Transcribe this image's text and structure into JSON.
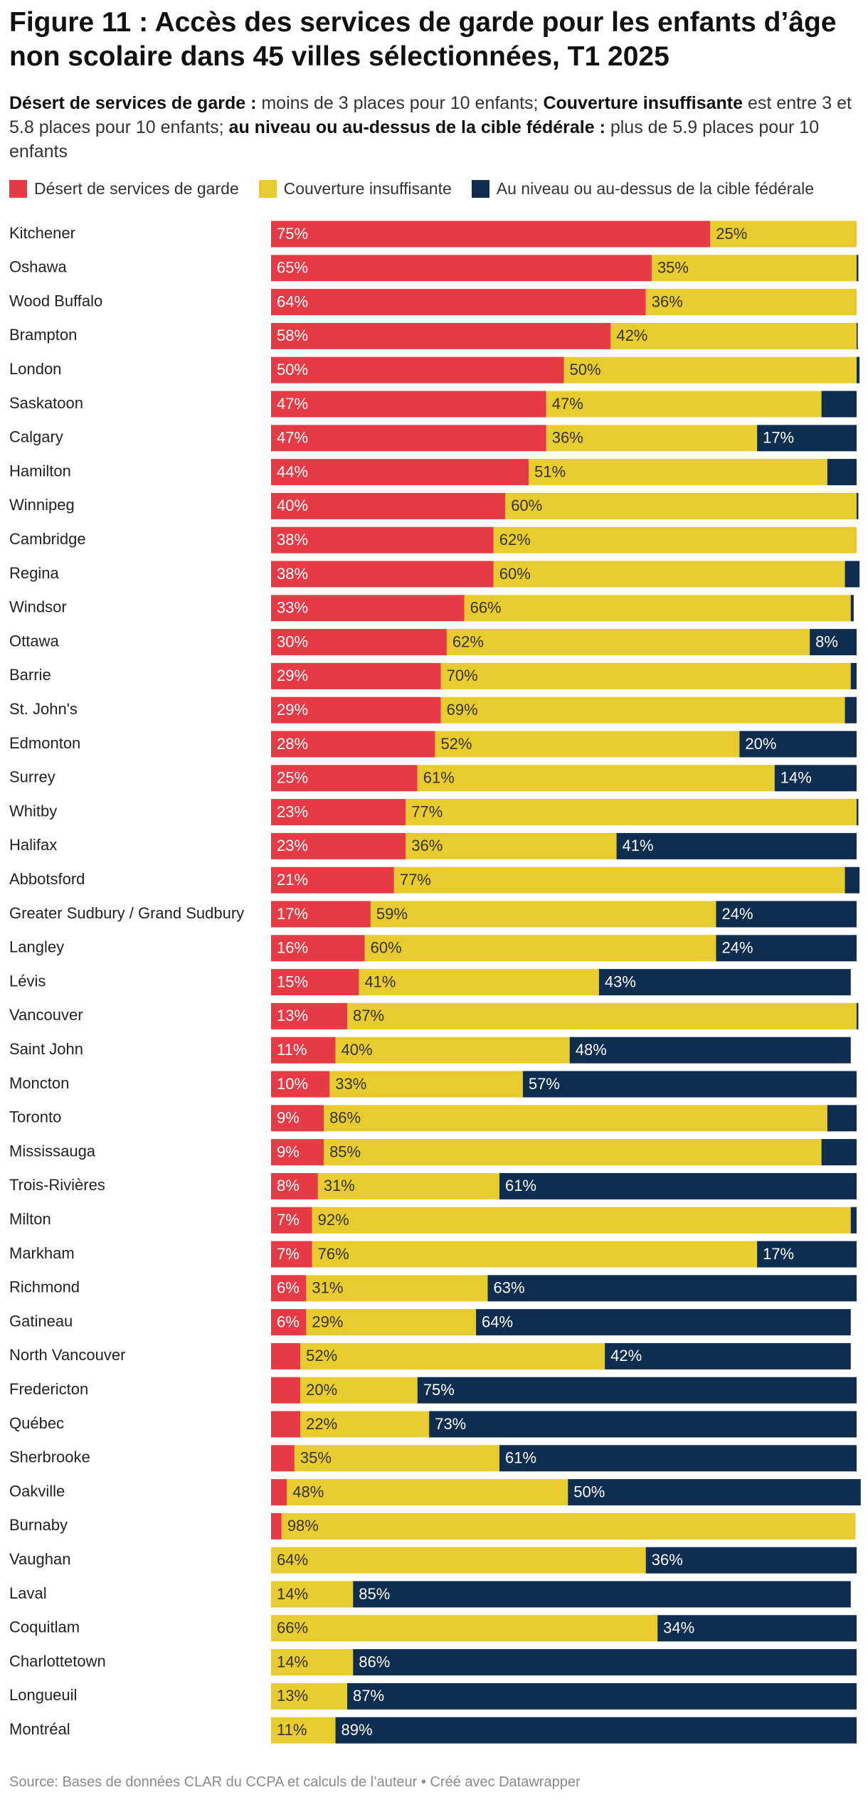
{
  "chart_data": {
    "type": "bar",
    "orientation": "horizontal",
    "stacked": true,
    "title": "Figure 11 : Accès des services de garde pour les enfants d’âge non scolaire dans 45 villes sélectionnées, T1 2025",
    "subtitle": [
      {
        "text": "Désert de services de garde :",
        "bold": true
      },
      {
        "text": " moins de 3 places pour 10 enfants; ",
        "bold": false
      },
      {
        "text": "Couverture insuffisante",
        "bold": true
      },
      {
        "text": " est entre 3 et 5.8 places pour 10 enfants; ",
        "bold": false
      },
      {
        "text": "au niveau ou au-dessus de la cible fédérale :",
        "bold": true
      },
      {
        "text": " plus de 5.9 places pour 10 enfants",
        "bold": false
      }
    ],
    "source": "Source: Bases de données CLAR du CCPA et calculs de l’auteur • Créé avec Datawrapper",
    "xlim": [
      0,
      100
    ],
    "categories": [
      "Kitchener",
      "Oshawa",
      "Wood Buffalo",
      "Brampton",
      "London",
      "Saskatoon",
      "Calgary",
      "Hamilton",
      "Winnipeg",
      "Cambridge",
      "Regina",
      "Windsor",
      "Ottawa",
      "Barrie",
      "St. John's",
      "Edmonton",
      "Surrey",
      "Whitby",
      "Halifax",
      "Abbotsford",
      "Greater Sudbury / Grand Sudbury",
      "Langley",
      "Lévis",
      "Vancouver",
      "Saint John",
      "Moncton",
      "Toronto",
      "Mississauga",
      "Trois-Rivières",
      "Milton",
      "Markham",
      "Richmond",
      "Gatineau",
      "North Vancouver",
      "Fredericton",
      "Québec",
      "Sherbrooke",
      "Oakville",
      "Burnaby",
      "Vaughan",
      "Laval",
      "Coquitlam",
      "Charlottetown",
      "Longueuil",
      "Montréal"
    ],
    "series": [
      {
        "name": "Désert de services de garde",
        "color": "#e63a45",
        "text_color": "#ffffff",
        "values": [
          75,
          65,
          64,
          58,
          50,
          47,
          47,
          44,
          40,
          38,
          38,
          33,
          30,
          29,
          29,
          28,
          25,
          23,
          23,
          21,
          17,
          16,
          15,
          13,
          11,
          10,
          9,
          9,
          8,
          7,
          7,
          6,
          6,
          5,
          5,
          5,
          4,
          2.7,
          1.8,
          0,
          0,
          0,
          0,
          0,
          0
        ],
        "value_labels": [
          "75%",
          "65%",
          "64%",
          "58%",
          "50%",
          "47%",
          "47%",
          "44%",
          "40%",
          "38%",
          "38%",
          "33%",
          "30%",
          "29%",
          "29%",
          "28%",
          "25%",
          "23%",
          "23%",
          "21%",
          "17%",
          "16%",
          "15%",
          "13%",
          "11%",
          "10%",
          "9%",
          "9%",
          "8%",
          "7%",
          "7%",
          "6%",
          "6%",
          null,
          null,
          null,
          null,
          null,
          null,
          null,
          null,
          null,
          null,
          null,
          null
        ]
      },
      {
        "name": "Couverture insuffisante",
        "color": "#e8cb2e",
        "text_color": "#333333",
        "values": [
          25,
          35,
          36,
          42,
          50,
          47,
          36,
          51,
          60,
          62,
          60,
          66,
          62,
          70,
          69,
          52,
          61,
          77,
          36,
          77,
          59,
          60,
          41,
          87,
          40,
          33,
          86,
          85,
          31,
          92,
          76,
          31,
          29,
          52,
          20,
          22,
          35,
          48,
          98,
          64,
          14,
          66,
          14,
          13,
          11
        ],
        "value_labels": [
          "25%",
          "35%",
          "36%",
          "42%",
          "50%",
          "47%",
          "36%",
          "51%",
          "60%",
          "62%",
          "60%",
          "66%",
          "62%",
          "70%",
          "69%",
          "52%",
          "61%",
          "77%",
          "36%",
          "77%",
          "59%",
          "60%",
          "41%",
          "87%",
          "40%",
          "33%",
          "86%",
          "85%",
          "31%",
          "92%",
          "76%",
          "31%",
          "29%",
          "52%",
          "20%",
          "22%",
          "35%",
          "48%",
          "98%",
          "64%",
          "14%",
          "66%",
          "14%",
          "13%",
          "11%"
        ]
      },
      {
        "name": "Au niveau ou au-dessus de la cible fédérale",
        "color": "#0f2d4f",
        "text_color": "#ffffff",
        "values": [
          0,
          0.3,
          0,
          0.2,
          0.5,
          6,
          17,
          5,
          0.3,
          0,
          2.5,
          0.5,
          8,
          1,
          2,
          20,
          14,
          0.3,
          41,
          2.5,
          24,
          24,
          43,
          0.3,
          48,
          57,
          5,
          6,
          61,
          1,
          17,
          63,
          64,
          42,
          75,
          73,
          61,
          50,
          0,
          36,
          85,
          34,
          86,
          87,
          89
        ],
        "value_labels": [
          null,
          null,
          null,
          null,
          null,
          null,
          "17%",
          null,
          null,
          null,
          null,
          null,
          "8%",
          null,
          null,
          "20%",
          "14%",
          null,
          "41%",
          null,
          "24%",
          "24%",
          "43%",
          null,
          "48%",
          "57%",
          null,
          null,
          "61%",
          null,
          "17%",
          "63%",
          "64%",
          "42%",
          "75%",
          "73%",
          "61%",
          "50%",
          null,
          "36%",
          "85%",
          "34%",
          "86%",
          "87%",
          "89%"
        ]
      }
    ]
  }
}
